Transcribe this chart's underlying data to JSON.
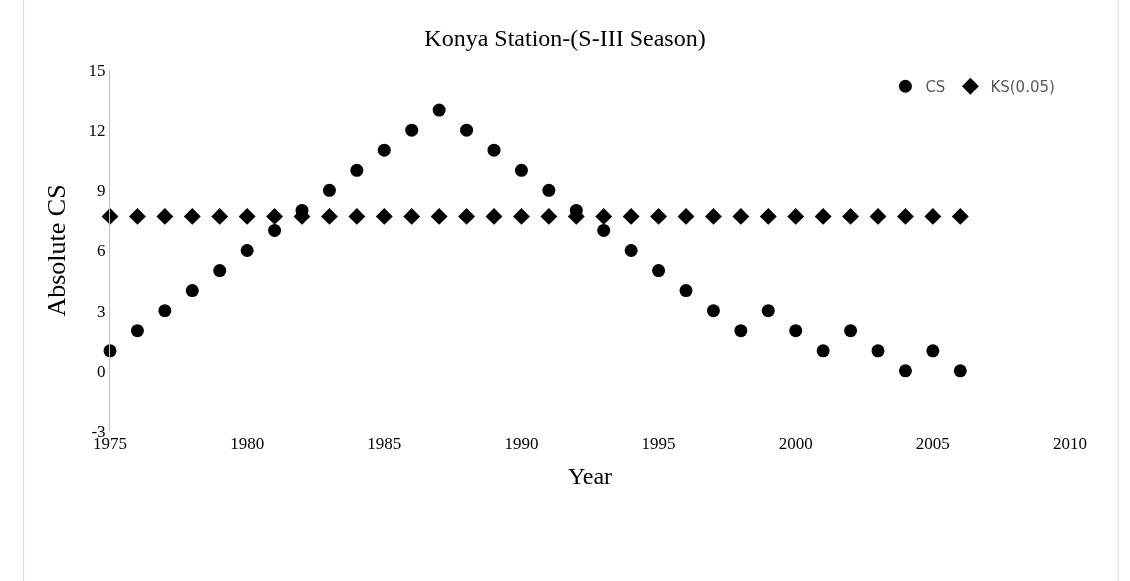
{
  "chart_data": {
    "type": "scatter",
    "title": "Konya Station-(S-III Season)",
    "xlabel": "Year",
    "ylabel": "Absolute CS",
    "x": [
      1975,
      1976,
      1977,
      1978,
      1979,
      1980,
      1981,
      1982,
      1983,
      1984,
      1985,
      1986,
      1987,
      1988,
      1989,
      1990,
      1991,
      1992,
      1993,
      1994,
      1995,
      1996,
      1997,
      1998,
      1999,
      2000,
      2001,
      2002,
      2003,
      2004,
      2005,
      2006
    ],
    "series": [
      {
        "name": "CS",
        "color": "#000000",
        "marker": "circle",
        "values": [
          1,
          2,
          3,
          4,
          5,
          6,
          7,
          8,
          9,
          10,
          11,
          12,
          13,
          12,
          11,
          10,
          9,
          8,
          7,
          6,
          5,
          4,
          3,
          2,
          3,
          2,
          1,
          2,
          1,
          0,
          1,
          0
        ]
      },
      {
        "name": "KS(0.05)",
        "color": "#000000",
        "marker": "diamond",
        "values": [
          7.7,
          7.7,
          7.7,
          7.7,
          7.7,
          7.7,
          7.7,
          7.7,
          7.7,
          7.7,
          7.7,
          7.7,
          7.7,
          7.7,
          7.7,
          7.7,
          7.7,
          7.7,
          7.7,
          7.7,
          7.7,
          7.7,
          7.7,
          7.7,
          7.7,
          7.7,
          7.7,
          7.7,
          7.7,
          7.7,
          7.7,
          7.7
        ]
      }
    ],
    "xlim": [
      1975,
      2010
    ],
    "xticks": [
      1975,
      1980,
      1985,
      1990,
      1995,
      2000,
      2005,
      2010
    ],
    "ylim": [
      -3,
      15
    ],
    "yticks": [
      -3,
      0,
      3,
      6,
      9,
      12,
      15
    ],
    "legend": "top right"
  }
}
